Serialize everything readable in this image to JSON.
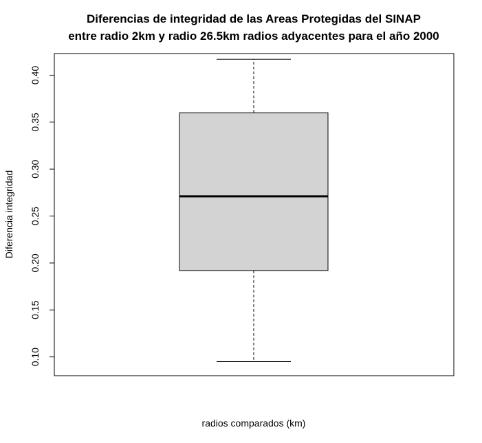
{
  "chart_data": {
    "type": "boxplot",
    "title_lines": [
      "Diferencias de integridad de las Areas Protegidas del SINAP",
      "entre radio 2km y radio 26.5km radios adyacentes para el año 2000"
    ],
    "xlabel": "radios comparados (km)",
    "ylabel": "Diferencia integridad",
    "ylim": [
      0.08,
      0.423
    ],
    "yticks": [
      0.1,
      0.15,
      0.2,
      0.25,
      0.3,
      0.35,
      0.4
    ],
    "ytick_labels": [
      "0.10",
      "0.15",
      "0.20",
      "0.25",
      "0.30",
      "0.35",
      "0.40"
    ],
    "box": {
      "whisker_low": 0.095,
      "q1": 0.192,
      "median": 0.271,
      "q3": 0.36,
      "whisker_high": 0.417
    },
    "box_color": "#d3d3d3",
    "grid": false,
    "legend": "none"
  }
}
